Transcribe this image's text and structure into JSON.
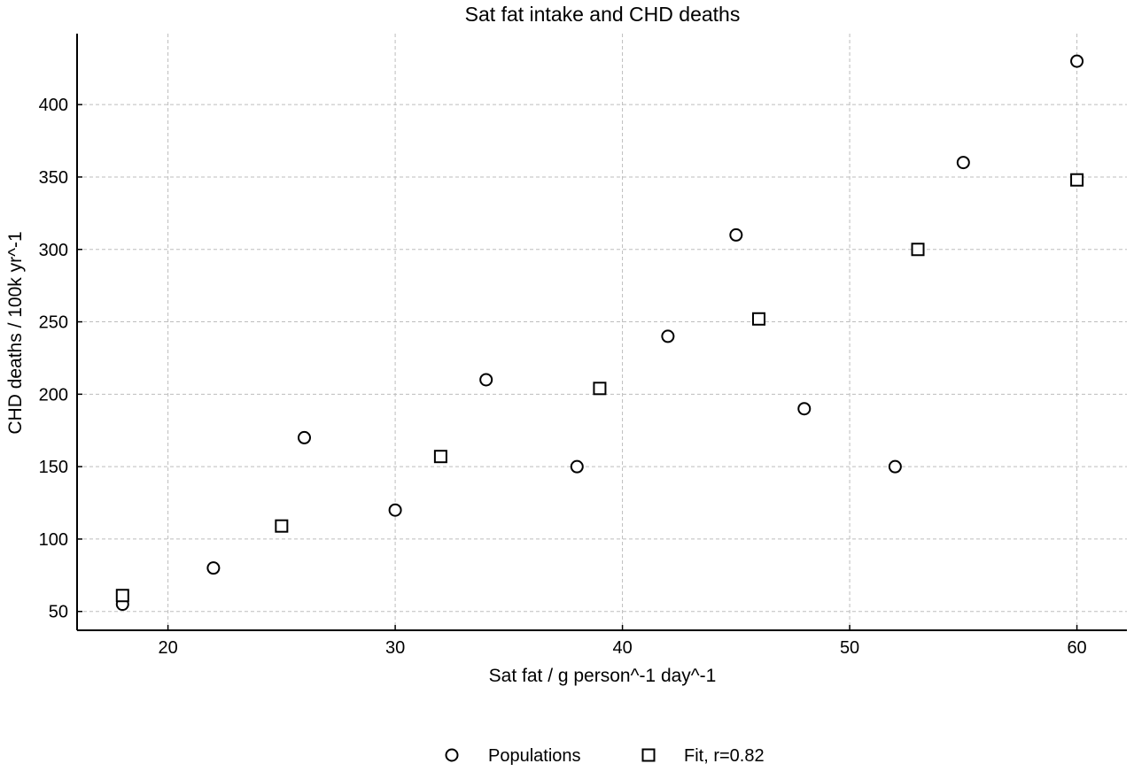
{
  "chart_data": {
    "type": "scatter",
    "title": "Sat fat intake and CHD deaths",
    "xlabel": "Sat fat / g person^-1 day^-1",
    "ylabel": "CHD deaths / 100k yr^-1",
    "xlim": [
      16,
      62.2
    ],
    "ylim": [
      37,
      449
    ],
    "xticks": [
      20,
      30,
      40,
      50,
      60
    ],
    "yticks": [
      50,
      100,
      150,
      200,
      250,
      300,
      350,
      400
    ],
    "grid": true,
    "legend_position": "bottom",
    "series": [
      {
        "name": "Populations",
        "marker": "circle",
        "points": [
          {
            "x": 18,
            "y": 55
          },
          {
            "x": 22,
            "y": 80
          },
          {
            "x": 26,
            "y": 170
          },
          {
            "x": 30,
            "y": 120
          },
          {
            "x": 34,
            "y": 210
          },
          {
            "x": 38,
            "y": 150
          },
          {
            "x": 42,
            "y": 240
          },
          {
            "x": 45,
            "y": 310
          },
          {
            "x": 48,
            "y": 190
          },
          {
            "x": 52,
            "y": 150
          },
          {
            "x": 55,
            "y": 360
          },
          {
            "x": 60,
            "y": 430
          }
        ]
      },
      {
        "name": "Fit, r=0.82",
        "marker": "square",
        "points": [
          {
            "x": 18,
            "y": 61
          },
          {
            "x": 25,
            "y": 109
          },
          {
            "x": 32,
            "y": 157
          },
          {
            "x": 39,
            "y": 204
          },
          {
            "x": 46,
            "y": 252
          },
          {
            "x": 53,
            "y": 300
          },
          {
            "x": 60,
            "y": 348
          }
        ]
      }
    ]
  }
}
